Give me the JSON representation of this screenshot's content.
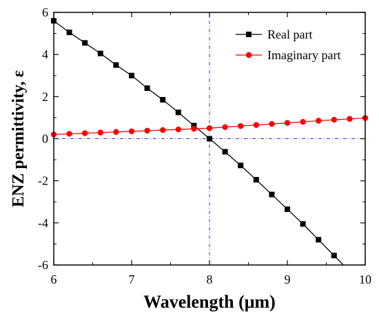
{
  "chart_data": {
    "type": "line",
    "xlabel": "Wavelength (μm)",
    "ylabel": "ENZ permittivity, ε",
    "xlim": [
      6,
      10
    ],
    "ylim": [
      -6,
      6
    ],
    "x_ticks": [
      6,
      7,
      8,
      9,
      10
    ],
    "y_ticks": [
      -6,
      -4,
      -2,
      0,
      2,
      4,
      6
    ],
    "x_tick_labels": [
      "6",
      "7",
      "8",
      "9",
      "10"
    ],
    "y_tick_labels": [
      "-6",
      "-4",
      "-2",
      "0",
      "2",
      "4",
      "6"
    ],
    "grid": false,
    "legend_position": "top-right",
    "reference_lines": {
      "x": 8,
      "y": 0,
      "color": "#3333cc",
      "style": "dash-dot"
    },
    "x": [
      6.0,
      6.2,
      6.4,
      6.6,
      6.8,
      7.0,
      7.2,
      7.4,
      7.6,
      7.8,
      8.0,
      8.2,
      8.4,
      8.6,
      8.8,
      9.0,
      9.2,
      9.4,
      9.6,
      9.8,
      10.0
    ],
    "series": [
      {
        "name": "Real part",
        "color": "#000000",
        "marker": "square",
        "values": [
          5.6,
          5.05,
          4.55,
          4.05,
          3.5,
          3.0,
          2.4,
          1.85,
          1.25,
          0.62,
          0.0,
          -0.62,
          -1.27,
          -1.95,
          -2.65,
          -3.35,
          -4.05,
          -4.8,
          -5.55,
          null,
          null
        ]
      },
      {
        "name": "Imaginary part",
        "color": "#ff0000",
        "marker": "circle",
        "values": [
          0.2,
          0.23,
          0.26,
          0.29,
          0.32,
          0.35,
          0.38,
          0.41,
          0.44,
          0.47,
          0.5,
          0.55,
          0.6,
          0.65,
          0.7,
          0.75,
          0.8,
          0.85,
          0.9,
          0.94,
          0.98
        ]
      }
    ]
  }
}
